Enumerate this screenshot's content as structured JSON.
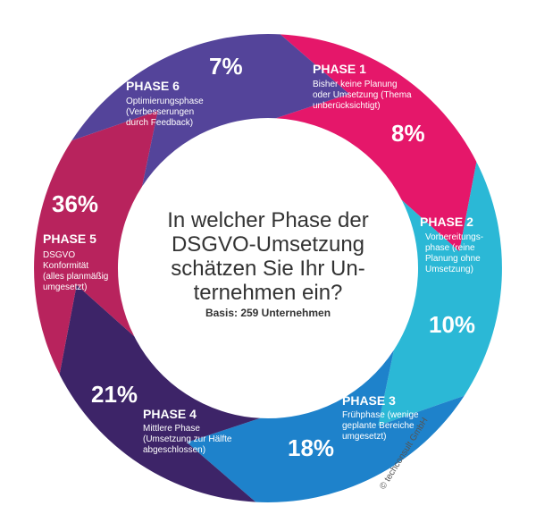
{
  "chart_data": {
    "type": "pie",
    "title": [
      "In welcher Phase der",
      "DSGVO-Umsetzung",
      "schätzen Sie Ihr Un-",
      "ternehmen ein?"
    ],
    "subtitle": "Basis: 259 Unternehmen",
    "credit": "© techconsult GmbH",
    "segments": [
      {
        "phase": "PHASE 1",
        "description": [
          "Bisher keine Planung",
          "oder Umsetzung (Thema",
          "unberücksichtigt)"
        ],
        "value": 8,
        "label": "8%",
        "color": "#e5176a"
      },
      {
        "phase": "PHASE 2",
        "description": [
          "Vorbereitungs-",
          "phase (reine",
          "Planung ohne",
          "Umsetzung)"
        ],
        "value": 10,
        "label": "10%",
        "color": "#2bb8d6"
      },
      {
        "phase": "PHASE 3",
        "description": [
          "Frühphase (wenige",
          "geplante Bereiche",
          "umgesetzt)"
        ],
        "value": 18,
        "label": "18%",
        "color": "#1e82cb"
      },
      {
        "phase": "PHASE 4",
        "description": [
          "Mittlere Phase",
          "(Umsetzung zur Hälfte",
          "abgeschlossen)"
        ],
        "value": 21,
        "label": "21%",
        "color": "#3d2468"
      },
      {
        "phase": "PHASE 5",
        "description": [
          "DSGVO",
          "Konformität",
          "(alles planmäßig",
          "umgesetzt)"
        ],
        "value": 36,
        "label": "36%",
        "color": "#b8235d"
      },
      {
        "phase": "PHASE 6",
        "description": [
          "Optimierungsphase",
          "(Verbesserungen",
          "durch Feedback)"
        ],
        "value": 7,
        "label": "7%",
        "color": "#54449a"
      }
    ]
  }
}
